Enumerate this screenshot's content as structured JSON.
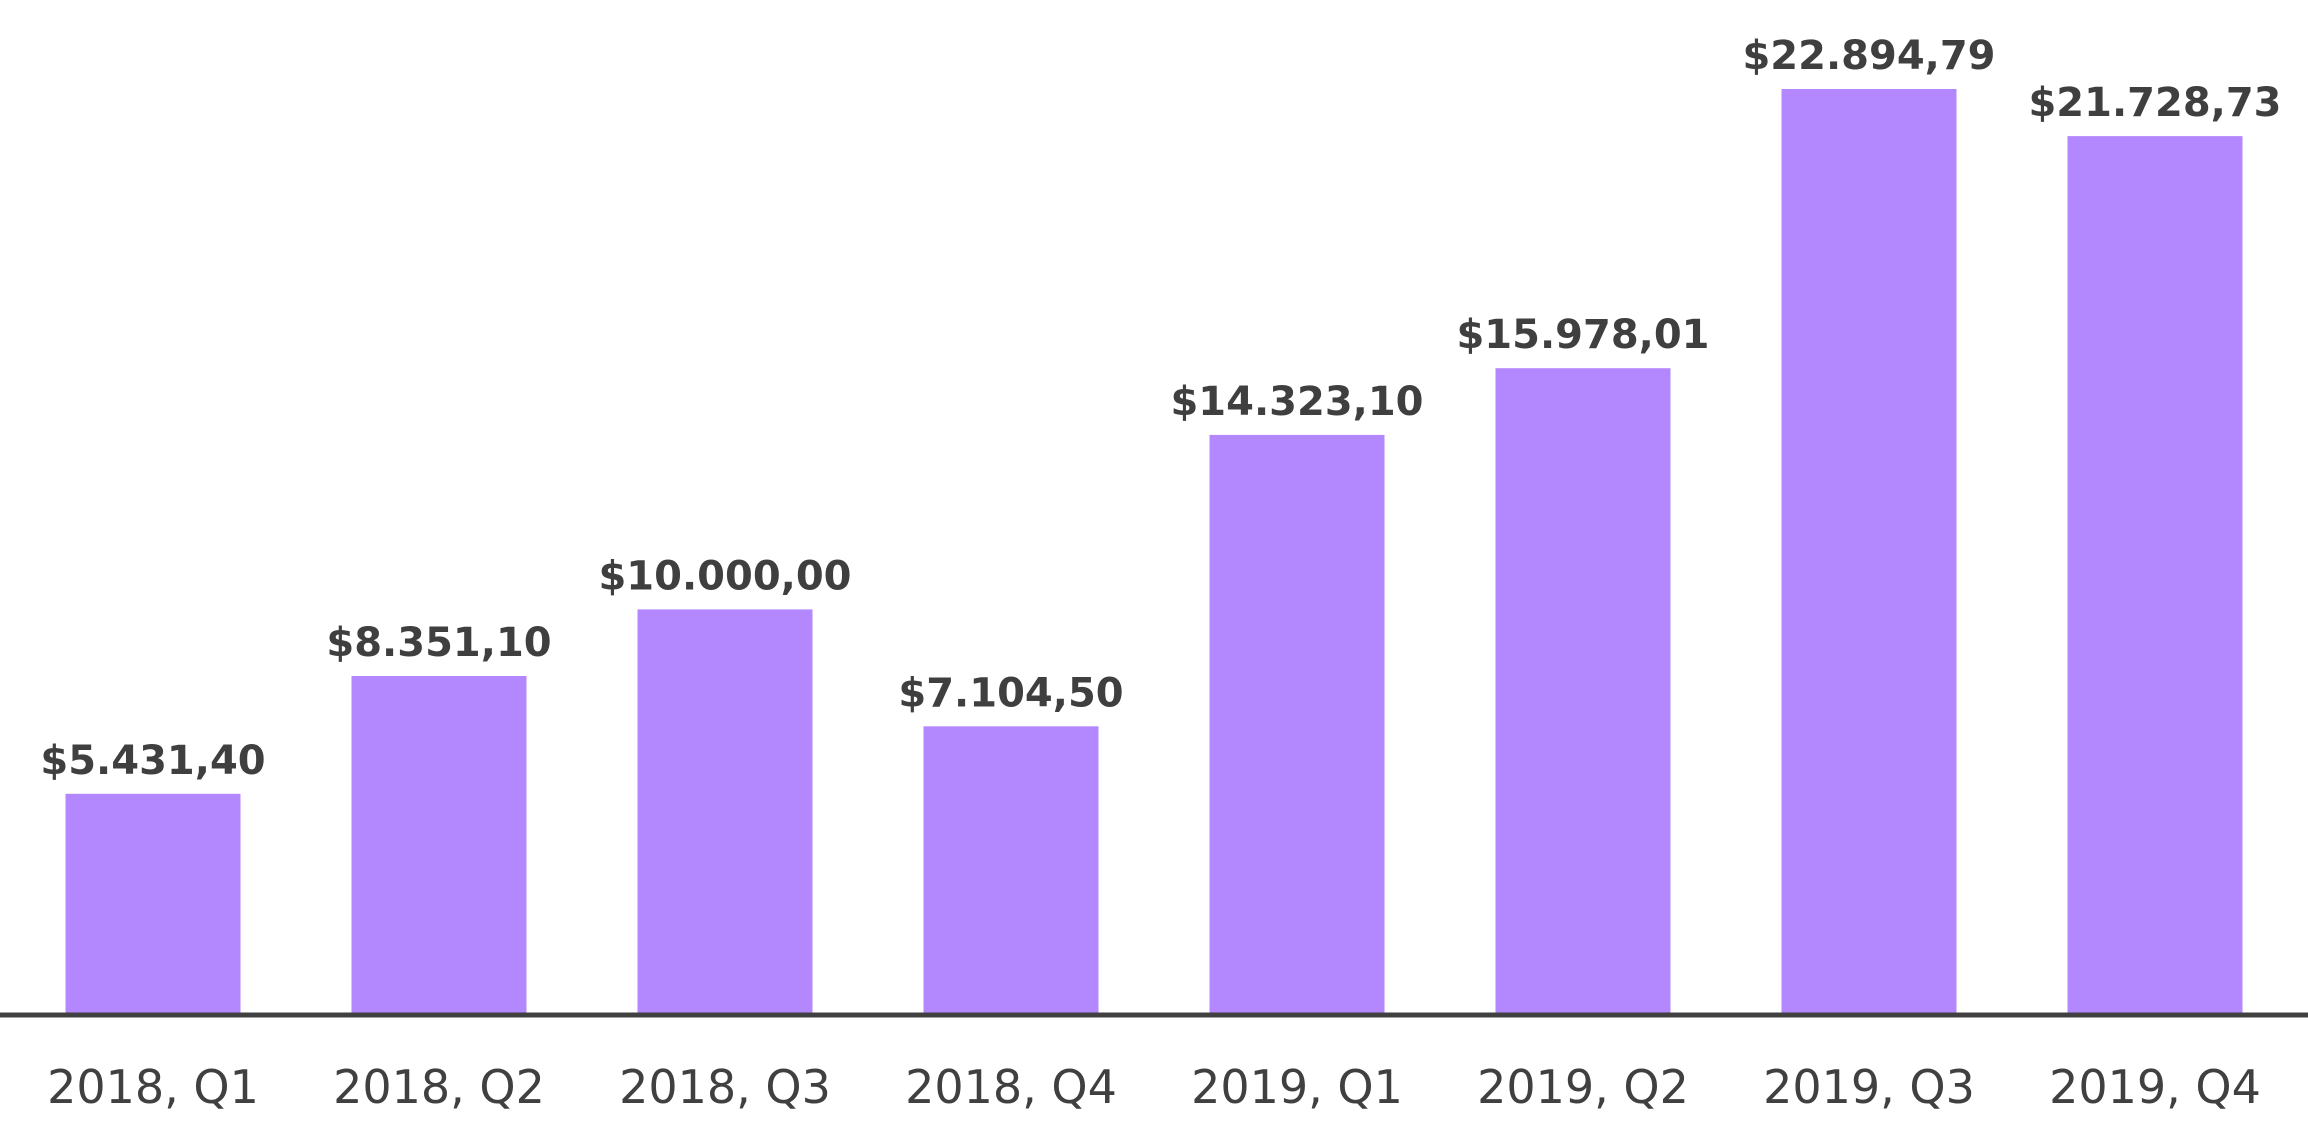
{
  "chart_data": {
    "type": "bar",
    "title": "",
    "xlabel": "",
    "ylabel": "",
    "categories": [
      "2018, Q1",
      "2018, Q2",
      "2018, Q3",
      "2018, Q4",
      "2019, Q1",
      "2019, Q2",
      "2019, Q3",
      "2019, Q4"
    ],
    "values": [
      5431.4,
      8351.1,
      10000.0,
      7104.5,
      14323.1,
      15978.01,
      22894.79,
      21728.73
    ],
    "value_labels": [
      "$5.431,40",
      "$8.351,10",
      "$10.000,00",
      "$7.104,50",
      "$14.323,10",
      "$15.978,01",
      "$22.894,79",
      "$21.728,73"
    ],
    "ylim": [
      0,
      25100
    ],
    "grid": false,
    "legend": "none",
    "colors": {
      "bar": "#b388ff",
      "axis": "#404040",
      "label": "#3f3f3f"
    }
  }
}
